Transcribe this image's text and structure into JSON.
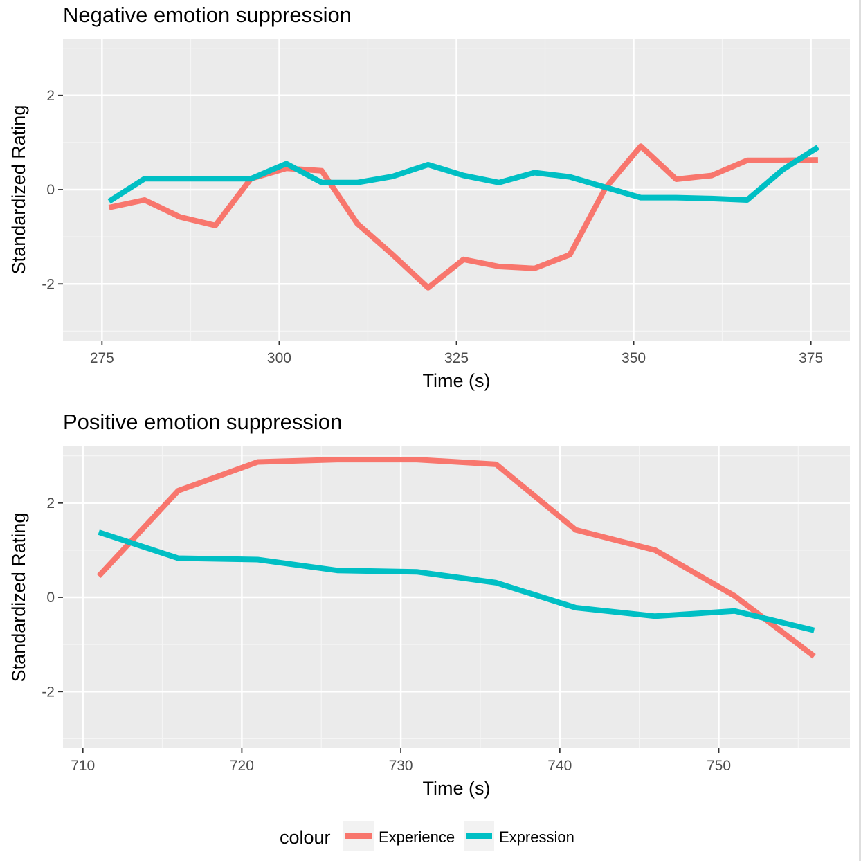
{
  "chart_data": [
    {
      "type": "line",
      "title": "Negative emotion suppression",
      "xlabel": "Time (s)",
      "ylabel": "Standardized Rating",
      "xlim": [
        269.5,
        380.5
      ],
      "ylim": [
        -3.2,
        3.2
      ],
      "x_ticks": [
        275,
        300,
        325,
        350,
        375
      ],
      "y_ticks": [
        -2,
        0,
        2
      ],
      "x_tick_labels": [
        "275",
        "300",
        "325",
        "350",
        "375"
      ],
      "y_tick_labels": [
        "-2",
        "0",
        "2"
      ],
      "grid": true,
      "series": [
        {
          "name": "Experience",
          "color": "#F8766D",
          "x": [
            276,
            281,
            286,
            291,
            296,
            301,
            306,
            311,
            316,
            321,
            326,
            331,
            336,
            341,
            346,
            351,
            356,
            361,
            366,
            371,
            376
          ],
          "y": [
            -0.38,
            -0.22,
            -0.58,
            -0.76,
            0.23,
            0.45,
            0.4,
            -0.72,
            -1.38,
            -2.08,
            -1.48,
            -1.63,
            -1.67,
            -1.38,
            0.03,
            0.92,
            0.22,
            0.3,
            0.62,
            0.62,
            0.63
          ]
        },
        {
          "name": "Expression",
          "color": "#00BFC4",
          "x": [
            276,
            281,
            286,
            291,
            296,
            301,
            306,
            311,
            316,
            321,
            326,
            331,
            336,
            341,
            346,
            351,
            356,
            361,
            366,
            371,
            376
          ],
          "y": [
            -0.25,
            0.23,
            0.23,
            0.23,
            0.23,
            0.55,
            0.15,
            0.15,
            0.28,
            0.53,
            0.3,
            0.15,
            0.36,
            0.27,
            0.05,
            -0.17,
            -0.17,
            -0.19,
            -0.22,
            0.42,
            0.9
          ]
        }
      ]
    },
    {
      "type": "line",
      "title": "Positive emotion suppression",
      "xlabel": "Time (s)",
      "ylabel": "Standardized Rating",
      "xlim": [
        708.75,
        758.25
      ],
      "ylim": [
        -3.2,
        3.2
      ],
      "x_ticks": [
        710,
        720,
        730,
        740,
        750
      ],
      "y_ticks": [
        -2,
        0,
        2
      ],
      "x_tick_labels": [
        "710",
        "720",
        "730",
        "740",
        "750"
      ],
      "y_tick_labels": [
        "-2",
        "0",
        "2"
      ],
      "grid": true,
      "series": [
        {
          "name": "Experience",
          "color": "#F8766D",
          "x": [
            711,
            716,
            721,
            726,
            731,
            736,
            741,
            746,
            751,
            756
          ],
          "y": [
            0.45,
            2.26,
            2.87,
            2.92,
            2.92,
            2.82,
            1.43,
            1.0,
            0.03,
            -1.25
          ]
        },
        {
          "name": "Expression",
          "color": "#00BFC4",
          "x": [
            711,
            716,
            721,
            726,
            731,
            736,
            741,
            746,
            751,
            756
          ],
          "y": [
            1.38,
            0.83,
            0.8,
            0.57,
            0.54,
            0.31,
            -0.22,
            -0.4,
            -0.29,
            -0.7
          ]
        }
      ]
    }
  ],
  "legend": {
    "title": "colour",
    "position": "bottom",
    "items": [
      {
        "label": "Experience",
        "color": "#F8766D"
      },
      {
        "label": "Expression",
        "color": "#00BFC4"
      }
    ]
  },
  "style": {
    "panel_bg": "#EBEBEB",
    "grid_major": "#FFFFFF",
    "grid_minor": "#F5F5F5",
    "tick_color": "#333333",
    "tick_text": "#4D4D4D",
    "key_bg": "#F2F2F2"
  }
}
